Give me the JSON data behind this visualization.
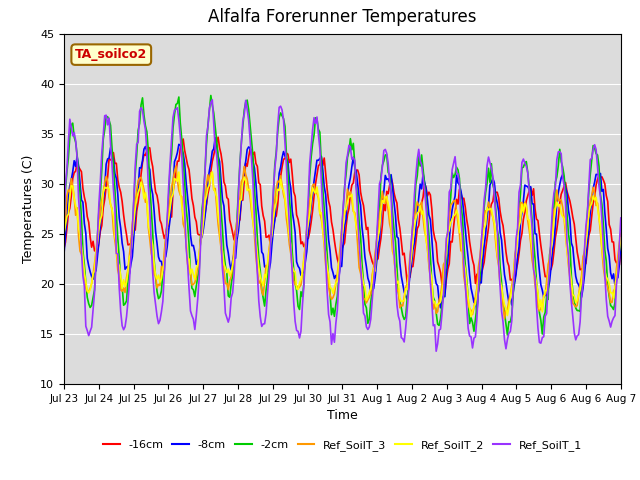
{
  "title": "Alfalfa Forerunner Temperatures",
  "xlabel": "Time",
  "ylabel": "Temperatures (C)",
  "ylim": [
    10,
    45
  ],
  "annotation_text": "TA_soilco2",
  "lines": {
    "-16cm": {
      "color": "#ff0000",
      "label": "-16cm"
    },
    "-8cm": {
      "color": "#0000ff",
      "label": "-8cm"
    },
    "-2cm": {
      "color": "#00cc00",
      "label": "-2cm"
    },
    "Ref_SoilT_3": {
      "color": "#ff9900",
      "label": "Ref_SoilT_3"
    },
    "Ref_SoilT_2": {
      "color": "#ffff00",
      "label": "Ref_SoilT_2"
    },
    "Ref_SoilT_1": {
      "color": "#9933ff",
      "label": "Ref_SoilT_1"
    }
  },
  "xtick_labels": [
    "Jul 23",
    "Jul 24",
    "Jul 25",
    "Jul 26",
    "Jul 27",
    "Jul 28",
    "Jul 29",
    "Jul 30",
    "Jul 31",
    "Aug 1",
    "Aug 2",
    "Aug 3",
    "Aug 4",
    "Aug 5",
    "Aug 6",
    "Aug 6",
    "Aug 7"
  ],
  "grid_color": "#ffffff",
  "plot_bg": "#dcdcdc"
}
